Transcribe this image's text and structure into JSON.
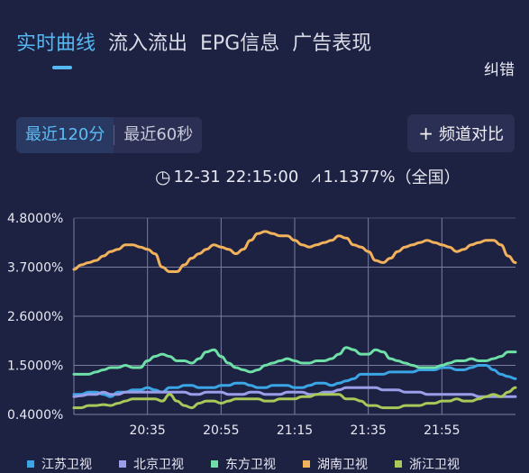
{
  "tabs": [
    {
      "label": "实时曲线",
      "active": true
    },
    {
      "label": "流入流出",
      "active": false
    },
    {
      "label": "EPG信息",
      "active": false
    },
    {
      "label": "广告表现",
      "active": false
    }
  ],
  "report_label": "纠错",
  "range_buttons": [
    {
      "label": "最近120分",
      "active": true
    },
    {
      "label": "最近60秒",
      "active": false
    }
  ],
  "compare": {
    "icon": "plus-icon",
    "label": "频道对比"
  },
  "status": {
    "clock_icon": "clock-icon",
    "time": "12-31 22:15:00",
    "trend_icon": "trend-icon",
    "value": "1.1377%",
    "scope": "（全国）"
  },
  "colors": {
    "accent": "#55b8f3",
    "background": "#1d2142"
  },
  "chart_data": {
    "type": "line",
    "ylim": [
      0.4,
      4.8
    ],
    "y_ticks": [
      "4.8000%",
      "3.7000%",
      "2.6000%",
      "1.5000%",
      "0.4000%"
    ],
    "y_tick_values": [
      4.8,
      3.7,
      2.6,
      1.5,
      0.4
    ],
    "x_ticks": [
      "20:35",
      "20:55",
      "21:15",
      "21:35",
      "21:55"
    ],
    "x_tick_minutes": [
      20,
      40,
      60,
      80,
      100
    ],
    "x_range_minutes": [
      0,
      120
    ],
    "grid": true,
    "legend_position": "bottom",
    "series": [
      {
        "name": "江苏卫视",
        "color": "#3aa6e6",
        "values": [
          0.85,
          0.85,
          0.9,
          0.9,
          0.85,
          0.8,
          0.9,
          0.9,
          0.95,
          0.95,
          1.0,
          0.95,
          0.9,
          1.0,
          1.0,
          1.05,
          1.05,
          1.0,
          1.0,
          1.0,
          1.05,
          1.05,
          1.1,
          1.1,
          1.05,
          1.0,
          1.0,
          1.05,
          1.05,
          1.05,
          1.0,
          1.0,
          1.05,
          1.1,
          1.1,
          1.05,
          1.1,
          1.15,
          1.2,
          1.3,
          1.3,
          1.3,
          1.3,
          1.35,
          1.35,
          1.35,
          1.35,
          1.4,
          1.4,
          1.4,
          1.45,
          1.45,
          1.4,
          1.4,
          1.45,
          1.5,
          1.5,
          1.4,
          1.3,
          1.25,
          1.2
        ]
      },
      {
        "name": "北京卫视",
        "color": "#9a9ee8",
        "values": [
          0.8,
          0.82,
          0.85,
          0.85,
          0.9,
          0.85,
          0.85,
          0.9,
          0.9,
          0.9,
          0.9,
          0.9,
          0.9,
          0.9,
          0.9,
          0.9,
          0.85,
          0.85,
          0.9,
          0.9,
          0.9,
          0.85,
          0.85,
          0.85,
          0.9,
          0.9,
          0.85,
          0.85,
          0.85,
          0.9,
          0.9,
          0.9,
          0.85,
          0.85,
          0.9,
          0.9,
          0.95,
          1.0,
          1.0,
          1.0,
          1.0,
          1.0,
          0.95,
          0.95,
          0.95,
          0.9,
          0.9,
          0.9,
          0.85,
          0.85,
          0.85,
          0.85,
          0.85,
          0.85,
          0.85,
          0.8,
          0.8,
          0.8,
          0.8,
          0.8,
          0.8
        ]
      },
      {
        "name": "东方卫视",
        "color": "#6ee0a7",
        "values": [
          1.3,
          1.3,
          1.3,
          1.35,
          1.4,
          1.45,
          1.45,
          1.5,
          1.45,
          1.45,
          1.6,
          1.7,
          1.75,
          1.7,
          1.6,
          1.6,
          1.55,
          1.65,
          1.8,
          1.85,
          1.7,
          1.55,
          1.45,
          1.4,
          1.35,
          1.4,
          1.5,
          1.55,
          1.6,
          1.65,
          1.6,
          1.55,
          1.55,
          1.6,
          1.6,
          1.65,
          1.75,
          1.9,
          1.85,
          1.75,
          1.75,
          1.85,
          1.8,
          1.65,
          1.6,
          1.55,
          1.5,
          1.45,
          1.45,
          1.45,
          1.5,
          1.55,
          1.6,
          1.6,
          1.65,
          1.6,
          1.6,
          1.65,
          1.7,
          1.8,
          1.8
        ]
      },
      {
        "name": "湖南卫视",
        "color": "#f2b25c",
        "values": [
          3.65,
          3.75,
          3.8,
          3.85,
          3.95,
          4.05,
          4.1,
          4.2,
          4.2,
          4.15,
          4.1,
          4.0,
          3.7,
          3.6,
          3.6,
          3.75,
          3.9,
          4.0,
          4.1,
          4.2,
          4.15,
          4.1,
          4.0,
          4.1,
          4.3,
          4.45,
          4.5,
          4.45,
          4.4,
          4.4,
          4.3,
          4.2,
          4.15,
          4.2,
          4.25,
          4.3,
          4.4,
          4.35,
          4.2,
          4.15,
          4.05,
          3.85,
          3.8,
          3.9,
          4.05,
          4.15,
          4.2,
          4.25,
          4.3,
          4.25,
          4.2,
          4.15,
          4.05,
          4.1,
          4.2,
          4.25,
          4.3,
          4.3,
          4.2,
          3.95,
          3.8
        ]
      },
      {
        "name": "浙江卫视",
        "color": "#a8c85a",
        "values": [
          0.55,
          0.55,
          0.6,
          0.6,
          0.62,
          0.6,
          0.65,
          0.7,
          0.75,
          0.75,
          0.75,
          0.75,
          0.7,
          0.85,
          0.7,
          0.6,
          0.55,
          0.65,
          0.7,
          0.7,
          0.65,
          0.7,
          0.75,
          0.75,
          0.75,
          0.75,
          0.7,
          0.7,
          0.75,
          0.75,
          0.75,
          0.8,
          0.8,
          0.85,
          0.85,
          0.85,
          0.85,
          0.75,
          0.75,
          0.7,
          0.6,
          0.6,
          0.55,
          0.55,
          0.55,
          0.6,
          0.6,
          0.6,
          0.65,
          0.65,
          0.7,
          0.7,
          0.75,
          0.7,
          0.7,
          0.75,
          0.8,
          0.85,
          0.8,
          0.9,
          1.0
        ]
      }
    ]
  }
}
